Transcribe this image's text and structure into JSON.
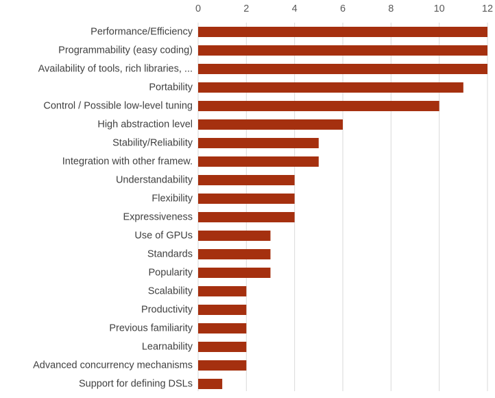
{
  "chart_data": {
    "type": "bar",
    "orientation": "horizontal",
    "categories": [
      "Performance/Efficiency",
      "Programmability (easy coding)",
      "Availability of tools, rich libraries, ...",
      "Portability",
      "Control / Possible low-level tuning",
      "High abstraction level",
      "Stability/Reliability",
      "Integration with other framew.",
      "Understandability",
      "Flexibility",
      "Expressiveness",
      "Use of GPUs",
      "Standards",
      "Popularity",
      "Scalability",
      "Productivity",
      "Previous familiarity",
      "Learnability",
      "Advanced concurrency mechanisms",
      "Support for defining DSLs"
    ],
    "values": [
      12,
      12,
      12,
      11,
      10,
      6,
      5,
      5,
      4,
      4,
      4,
      3,
      3,
      3,
      2,
      2,
      2,
      2,
      2,
      1
    ],
    "x_ticks": [
      "0",
      "2",
      "4",
      "6",
      "8",
      "10",
      "12"
    ],
    "xlim": [
      0,
      12
    ],
    "x_axis_position": "top",
    "grid": true,
    "legend": "none",
    "title": "",
    "xlabel": "",
    "ylabel": "",
    "colors": {
      "bar": "#A5300F",
      "grid": "#D9D9D9",
      "axis_text": "#595959",
      "category_text": "#404040"
    }
  }
}
